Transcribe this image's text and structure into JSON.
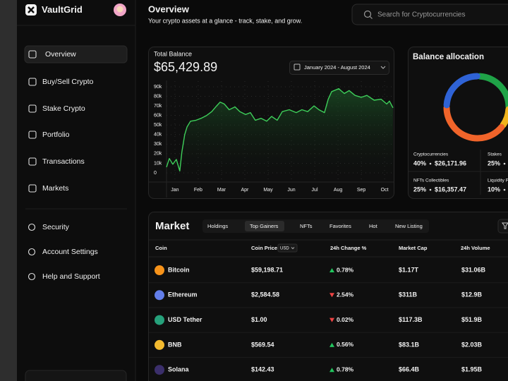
{
  "sidebar": {
    "brand": "VaultGrid",
    "nav": [
      "Overview",
      "Buy/Sell Crypto",
      "Stake Crypto",
      "Portfolio",
      "Transactions",
      "Markets"
    ],
    "active_nav": 0,
    "settings_nav": [
      "Security",
      "Account Settings",
      "Help and Support"
    ]
  },
  "header": {
    "title": "Overview",
    "subtitle": "Your crypto assets at a glance - track, stake, and grow.",
    "search_placeholder": "Search for Cryptocurrencies"
  },
  "balance": {
    "label": "Total Balance",
    "amount": "$65,429.89",
    "date_range": "January 2024 - August 2024"
  },
  "chart_data": [
    {
      "type": "line",
      "color": "#3ecf5a",
      "grid": true,
      "x": [
        -0.36,
        -0.24,
        -0.09,
        0.06,
        0.21,
        0.3,
        0.42,
        0.52,
        0.67,
        0.91,
        1.12,
        1.36,
        1.58,
        1.79,
        1.94,
        2.12,
        2.33,
        2.58,
        2.79,
        3.03,
        3.24,
        3.45,
        3.7,
        3.94,
        4.15,
        4.39,
        4.61,
        4.91,
        5.21,
        5.45,
        5.7,
        5.97,
        6.18,
        6.42,
        6.58,
        6.73,
        7.03,
        7.27,
        7.48,
        7.73,
        8.0,
        8.24,
        8.55,
        8.85,
        9.09,
        9.21,
        9.36
      ],
      "values": [
        6000,
        15000,
        9000,
        14000,
        2000,
        22000,
        40000,
        48000,
        54000,
        55000,
        57000,
        60000,
        64000,
        70000,
        74000,
        72000,
        66000,
        69000,
        64000,
        61000,
        63000,
        55000,
        57000,
        54000,
        59000,
        55000,
        64000,
        66000,
        63000,
        66000,
        64000,
        70000,
        66000,
        63000,
        77000,
        85000,
        88000,
        83000,
        86000,
        81000,
        79000,
        81000,
        76000,
        77000,
        72000,
        75000,
        68000
      ],
      "xlim": [
        -0.36,
        9.36
      ],
      "xticks": [
        {
          "value": 0,
          "label": "Jan"
        },
        {
          "value": 1,
          "label": "Feb"
        },
        {
          "value": 2,
          "label": "Mar"
        },
        {
          "value": 3,
          "label": "Apr"
        },
        {
          "value": 4,
          "label": "May"
        },
        {
          "value": 5,
          "label": "Jun"
        },
        {
          "value": 6,
          "label": "Jul"
        },
        {
          "value": 7,
          "label": "Aug"
        },
        {
          "value": 8,
          "label": "Sep"
        },
        {
          "value": 9,
          "label": "Oct"
        }
      ],
      "ylim": [
        0,
        90000
      ],
      "yticks": [
        0,
        {
          "value": 10000,
          "label": "10k"
        },
        {
          "value": 20000,
          "label": "20k"
        },
        {
          "value": 30000,
          "label": "30k"
        },
        {
          "value": 40000,
          "label": "40k"
        },
        {
          "value": 50000,
          "label": "50k"
        },
        {
          "value": 60000,
          "label": "60k"
        },
        {
          "value": 70000,
          "label": "70k"
        },
        {
          "value": 80000,
          "label": "80k"
        },
        {
          "value": 90000,
          "label": "90k"
        }
      ]
    },
    {
      "type": "pie",
      "title": "Balance allocation",
      "categories": [
        "Stakes",
        "Liquidity P",
        "Cryptocurrencies",
        "NFTs Collectibles"
      ],
      "values": [
        25,
        10,
        40,
        25
      ],
      "value_labels": [
        "25%",
        "10%",
        "40%",
        "25%"
      ],
      "colors": [
        "#1fa347",
        "#f0b41c",
        "#f0642a",
        "#2f63d6"
      ],
      "amounts": [
        null,
        null,
        "$26,171.96",
        "$16,357.47"
      ]
    }
  ],
  "market": {
    "title": "Market",
    "tabs": [
      "Holdings",
      "Top Gainers",
      "NFTs",
      "Favorites",
      "Hot",
      "New Listing"
    ],
    "active_tab": 1,
    "columns": [
      "Coin",
      "Coin Price",
      "24h Change %",
      "Market Cap",
      "24h Volume"
    ],
    "currency": "USD",
    "rows": [
      {
        "name": "Bitcoin",
        "price": "$59,198.71",
        "change": "0.78%",
        "direction": "up",
        "market_cap": "$1.17T",
        "volume": "$31.06B",
        "icon_color": "#f7931a"
      },
      {
        "name": "Ethereum",
        "price": "$2,584.58",
        "change": "2.54%",
        "direction": "down",
        "market_cap": "$311B",
        "volume": "$12.9B",
        "icon_color": "#627eea"
      },
      {
        "name": "USD Tether",
        "price": "$1.00",
        "change": "0.02%",
        "direction": "down",
        "market_cap": "$117.3B",
        "volume": "$51.9B",
        "icon_color": "#26a17b"
      },
      {
        "name": "BNB",
        "price": "$569.54",
        "change": "0.56%",
        "direction": "up",
        "market_cap": "$83.1B",
        "volume": "$2.03B",
        "icon_color": "#f3ba2f"
      },
      {
        "name": "Solana",
        "price": "$142.43",
        "change": "0.78%",
        "direction": "up",
        "market_cap": "$66.4B",
        "volume": "$1.95B",
        "icon_color": "#3b2f6b"
      }
    ]
  }
}
